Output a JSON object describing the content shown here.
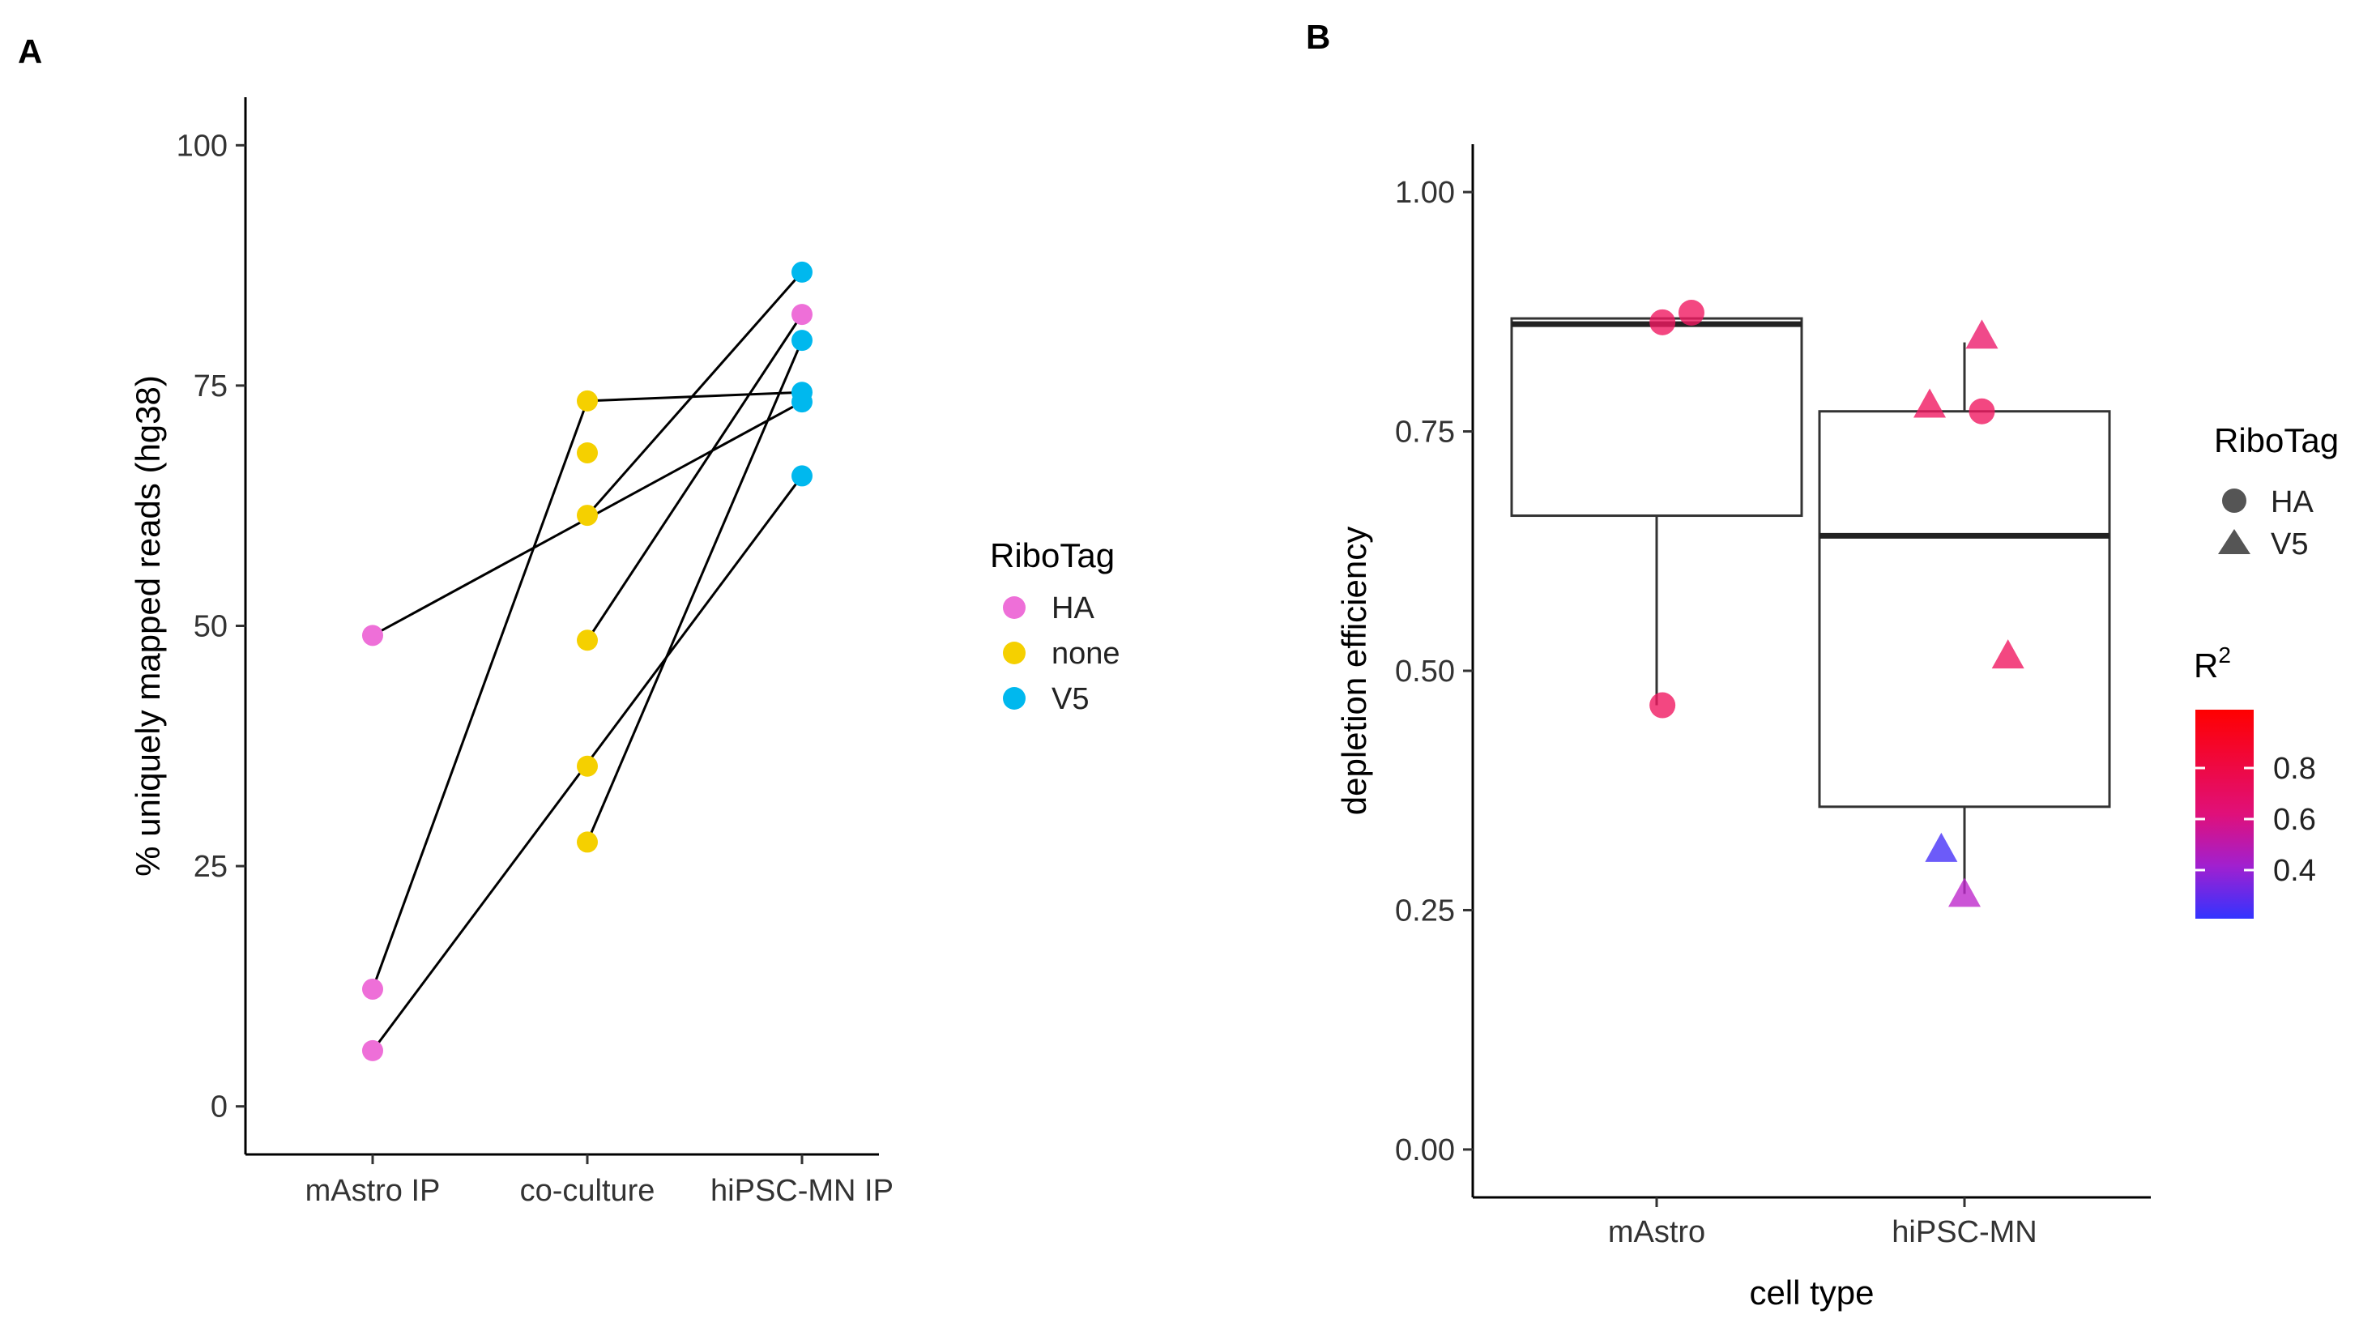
{
  "panel_a": {
    "label": "A",
    "legend": {
      "title": "RiboTag",
      "items": [
        {
          "label": "HA",
          "color": "#EE6FD8"
        },
        {
          "label": "none",
          "color": "#F5D000"
        },
        {
          "label": "V5",
          "color": "#00B8EE"
        }
      ]
    }
  },
  "panel_b": {
    "label": "B",
    "shape_legend": {
      "title": "RiboTag",
      "items": [
        {
          "label": "HA",
          "shape": "circle"
        },
        {
          "label": "V5",
          "shape": "triangle"
        }
      ]
    },
    "color_legend": {
      "title": "R",
      "title_sup": "2",
      "ticks": [
        "0.8",
        "0.6",
        "0.4"
      ],
      "gradient_high": "#FF0000",
      "gradient_low": "#3333FF"
    }
  },
  "chart_data": [
    {
      "type": "scatter",
      "id": "panel-a",
      "title": "",
      "xlabel": "",
      "ylabel": "% uniquely mapped reads (hg38)",
      "categories": [
        "mAstro IP",
        "co-culture",
        "hiPSC-MN IP"
      ],
      "ylim": [
        -5,
        105
      ],
      "yticks": [
        0,
        25,
        50,
        75,
        100
      ],
      "ytick_labels": [
        "0",
        "25",
        "50",
        "75",
        "100"
      ],
      "grid": false,
      "legend": "right",
      "points": [
        {
          "cat": 0,
          "y": 49.0,
          "tag": "HA"
        },
        {
          "cat": 0,
          "y": 12.2,
          "tag": "HA"
        },
        {
          "cat": 0,
          "y": 5.8,
          "tag": "HA"
        },
        {
          "cat": 1,
          "y": 73.4,
          "tag": "none"
        },
        {
          "cat": 1,
          "y": 68.0,
          "tag": "none"
        },
        {
          "cat": 1,
          "y": 61.5,
          "tag": "none"
        },
        {
          "cat": 1,
          "y": 48.5,
          "tag": "none"
        },
        {
          "cat": 1,
          "y": 35.4,
          "tag": "none"
        },
        {
          "cat": 1,
          "y": 27.5,
          "tag": "none"
        },
        {
          "cat": 2,
          "y": 86.8,
          "tag": "V5"
        },
        {
          "cat": 2,
          "y": 82.4,
          "tag": "HA"
        },
        {
          "cat": 2,
          "y": 79.7,
          "tag": "V5"
        },
        {
          "cat": 2,
          "y": 74.3,
          "tag": "V5"
        },
        {
          "cat": 2,
          "y": 73.3,
          "tag": "V5"
        },
        {
          "cat": 2,
          "y": 65.6,
          "tag": "V5"
        }
      ],
      "lines": [
        {
          "from": [
            0,
            49.0
          ],
          "to": [
            2,
            73.3
          ]
        },
        {
          "from": [
            0,
            12.2
          ],
          "to": [
            1,
            73.4
          ]
        },
        {
          "from": [
            1,
            73.4
          ],
          "to": [
            2,
            74.3
          ]
        },
        {
          "from": [
            0,
            5.8
          ],
          "to": [
            2,
            65.6
          ]
        },
        {
          "from": [
            1,
            61.5
          ],
          "to": [
            2,
            86.8
          ]
        },
        {
          "from": [
            1,
            48.5
          ],
          "to": [
            2,
            82.4
          ]
        },
        {
          "from": [
            1,
            27.5
          ],
          "to": [
            2,
            79.7
          ]
        }
      ]
    },
    {
      "type": "box",
      "id": "panel-b",
      "title": "",
      "xlabel": "cell type",
      "ylabel": "depletion efficiency",
      "categories": [
        "mAstro",
        "hiPSC-MN"
      ],
      "ylim": [
        -0.05,
        1.05
      ],
      "yticks": [
        0,
        0.25,
        0.5,
        0.75,
        1.0
      ],
      "ytick_labels": [
        "0.00",
        "0.25",
        "0.50",
        "0.75",
        "1.00"
      ],
      "grid": false,
      "legend": "right",
      "boxes": [
        {
          "cat": 0,
          "min": 0.464,
          "q1": 0.662,
          "median": 0.862,
          "q3": 0.868,
          "max": 0.868
        },
        {
          "cat": 1,
          "min": 0.267,
          "q1": 0.358,
          "median": 0.641,
          "q3": 0.771,
          "max": 0.843
        }
      ],
      "points": [
        {
          "cat": 0,
          "x_offset": 0.02,
          "y": 0.864,
          "shape": "circle",
          "r2": 0.85
        },
        {
          "cat": 0,
          "x_offset": 0.12,
          "y": 0.874,
          "shape": "circle",
          "r2": 0.85
        },
        {
          "cat": 0,
          "x_offset": 0.02,
          "y": 0.464,
          "shape": "circle",
          "r2": 0.85
        },
        {
          "cat": 1,
          "x_offset": 0.06,
          "y": 0.848,
          "shape": "triangle",
          "r2": 0.82
        },
        {
          "cat": 1,
          "x_offset": -0.12,
          "y": 0.776,
          "shape": "triangle",
          "r2": 0.85
        },
        {
          "cat": 1,
          "x_offset": 0.06,
          "y": 0.771,
          "shape": "circle",
          "r2": 0.85
        },
        {
          "cat": 1,
          "x_offset": 0.15,
          "y": 0.514,
          "shape": "triangle",
          "r2": 0.85
        },
        {
          "cat": 1,
          "x_offset": -0.08,
          "y": 0.312,
          "shape": "triangle",
          "r2": 0.25
        },
        {
          "cat": 1,
          "x_offset": 0.0,
          "y": 0.265,
          "shape": "triangle",
          "r2": 0.55
        }
      ]
    }
  ]
}
